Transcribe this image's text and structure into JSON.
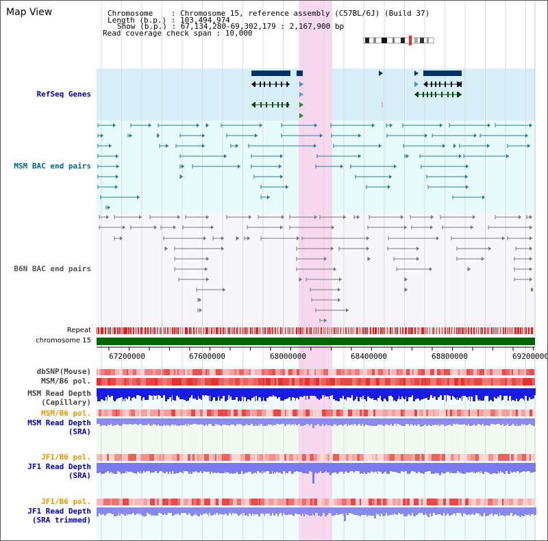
{
  "title": "Map View",
  "info": {
    "chromosome": "Chromosome    : Chromosome 15, reference assembly (C57BL/6J) (Build 37)",
    "length": "Length (b.p.) : 103,494,974",
    "show": "Show (b.p.) : 67,134,280-69,302,179 : 2,167,900 bp",
    "span": "Read coverage check span : 10,000"
  },
  "tracks": {
    "refseq": "RefSeq Genes",
    "msm_bac": "MSM BAC end pairs",
    "b6n_bac": "B6N BAC end pairs",
    "repeat": "Repeat",
    "chromosome": "chromosome 15",
    "dbsnp": "dbSNP(Mouse)",
    "msm_b6_pol": "MSM/B6 pol.",
    "msm_read_cap_1": "MSM Read Depth",
    "msm_read_cap_2": "(Capillary)",
    "msm_b6_pol2": "MSM/B6 pol.",
    "msm_read_sra_1": "MSM Read Depth",
    "msm_read_sra_2": "(SRA)",
    "jf1_b6_pol": "JF1/B6 pol.",
    "jf1_read_sra_1": "JF1 Read Depth",
    "jf1_read_sra_2": "(SRA)",
    "jf1_b6_pol2": "JF1/B6 pol.",
    "jf1_read_trim_1": "JF1 Read Depth",
    "jf1_read_trim_2": "(SRA trimmed)"
  },
  "axis": {
    "ticks": [
      "67200000",
      "67600000",
      "68000000",
      "68400000",
      "68800000",
      "69200000"
    ]
  },
  "colors": {
    "refseq_bg": "#d8eef8",
    "msm_bac_bg": "#e8fbfb",
    "b6n_bg": "#f6f6fb",
    "highlight": "#f7d9ef",
    "label_blue": "#0000aa",
    "label_teal": "#006688",
    "label_orange": "#e69500",
    "chromosome_bar": "#006600"
  }
}
